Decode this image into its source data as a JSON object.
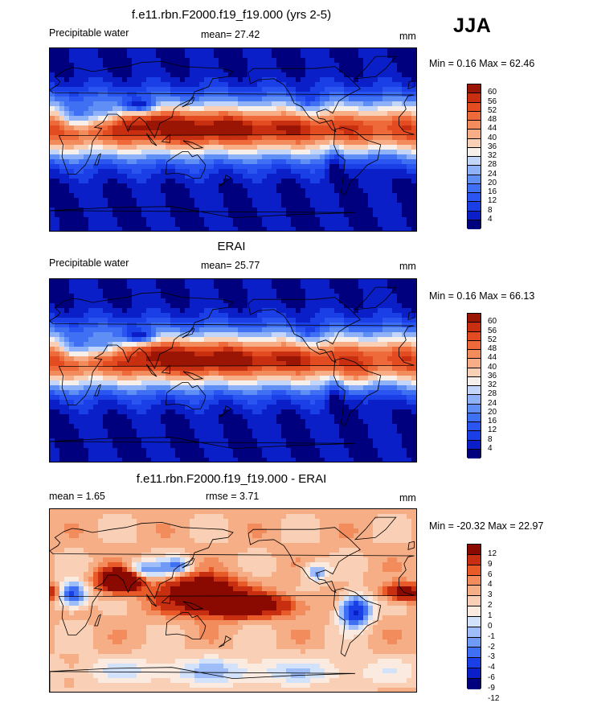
{
  "season_label": "JJA",
  "palettes": {
    "full": [
      "#00007f",
      "#0a1fc8",
      "#1a3fe6",
      "#2a55f0",
      "#3f6ff2",
      "#5f8ef5",
      "#8fb1f7",
      "#c3d6fa",
      "#f7f0ea",
      "#f9d0b5",
      "#f7ae86",
      "#f38c5d",
      "#ee6a3a",
      "#e34b20",
      "#c72f10",
      "#9b1505"
    ],
    "diff": [
      "#00007f",
      "#0a1fc8",
      "#1a3fe6",
      "#3f6ff2",
      "#6f9af5",
      "#9fbdf8",
      "#d3e2fb",
      "#fbeadf",
      "#f9d0b5",
      "#f6ae86",
      "#f28c5d",
      "#e85a28",
      "#c72f10",
      "#8a0a02"
    ]
  },
  "panels": [
    {
      "title": "f.e11.rbn.F2000.f19_f19.000 (yrs 2-5)",
      "left_label": "Precipitable water",
      "center_label": "mean=  27.42",
      "right_label": "mm",
      "minmax_label": "Min =   0.16 Max =  62.46",
      "field": "model",
      "colorbar_ticks": [
        "60",
        "56",
        "52",
        "48",
        "44",
        "40",
        "36",
        "32",
        "28",
        "24",
        "20",
        "16",
        "12",
        "8",
        "4"
      ]
    },
    {
      "title": "ERAI",
      "left_label": "Precipitable water",
      "center_label": "mean=  25.77",
      "right_label": "mm",
      "minmax_label": "Min =   0.16 Max =  66.13",
      "field": "obs",
      "colorbar_ticks": [
        "60",
        "56",
        "52",
        "48",
        "44",
        "40",
        "36",
        "32",
        "28",
        "24",
        "20",
        "16",
        "12",
        "8",
        "4"
      ]
    },
    {
      "title": "f.e11.rbn.F2000.f19_f19.000 - ERAI",
      "left_label": "mean =   1.65",
      "center_label": "rmse =   3.71",
      "right_label": "mm",
      "minmax_label": "Min = -20.32 Max =  22.97",
      "field": "diff",
      "colorbar_ticks": [
        "12",
        "9",
        "6",
        "4",
        "3",
        "2",
        "1",
        "0",
        "-1",
        "-2",
        "-3",
        "-4",
        "-6",
        "-9",
        "-12"
      ]
    }
  ]
}
